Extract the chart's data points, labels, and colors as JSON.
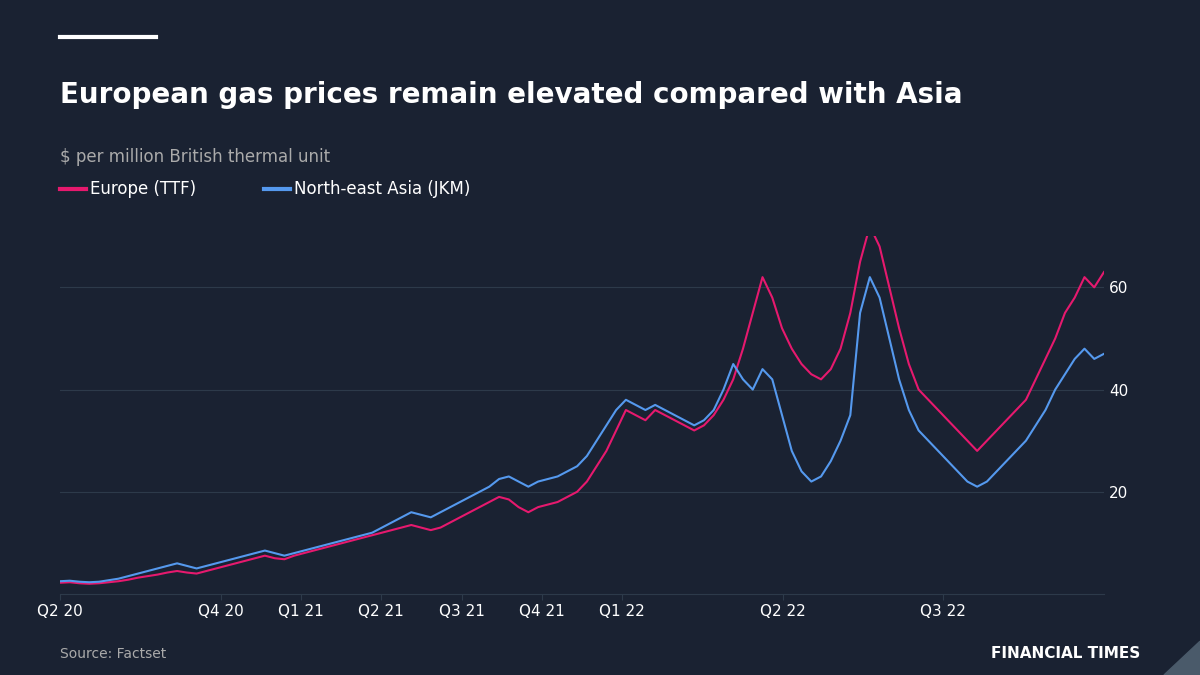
{
  "title": "European gas prices remain elevated compared with Asia",
  "subtitle": "$ per million British thermal unit",
  "legend_europe": "Europe (TTF)",
  "legend_asia": "North-east Asia (JKM)",
  "source": "Source: Factset",
  "footer": "FINANCIAL TIMES",
  "background_color": "#1a2232",
  "text_color": "#ffffff",
  "subtitle_color": "#aaaaaa",
  "grid_color": "#2d3a4a",
  "europe_color": "#e6196e",
  "asia_color": "#5599ee",
  "yticks": [
    20,
    40,
    60
  ],
  "ylim": [
    0,
    70
  ],
  "xtick_labels": [
    "Q2 20",
    "Q4 20",
    "Q1 21",
    "Q2 21",
    "Q3 21",
    "Q4 21",
    "Q1 22",
    "Q2 22",
    "Q3 22"
  ],
  "europe_data": [
    2.2,
    2.3,
    2.1,
    2.0,
    2.1,
    2.3,
    2.5,
    2.8,
    3.2,
    3.5,
    3.8,
    4.2,
    4.5,
    4.2,
    4.0,
    4.5,
    5.0,
    5.5,
    6.0,
    6.5,
    7.0,
    7.5,
    7.0,
    6.8,
    7.5,
    8.0,
    8.5,
    9.0,
    9.5,
    10.0,
    10.5,
    11.0,
    11.5,
    12.0,
    12.5,
    13.0,
    13.5,
    13.0,
    12.5,
    13.0,
    14.0,
    15.0,
    16.0,
    17.0,
    18.0,
    19.0,
    18.5,
    17.0,
    16.0,
    17.0,
    17.5,
    18.0,
    19.0,
    20.0,
    22.0,
    25.0,
    28.0,
    32.0,
    36.0,
    35.0,
    34.0,
    36.0,
    35.0,
    34.0,
    33.0,
    32.0,
    33.0,
    35.0,
    38.0,
    42.0,
    48.0,
    55.0,
    62.0,
    58.0,
    52.0,
    48.0,
    45.0,
    43.0,
    42.0,
    44.0,
    48.0,
    55.0,
    65.0,
    72.0,
    68.0,
    60.0,
    52.0,
    45.0,
    40.0,
    38.0,
    36.0,
    34.0,
    32.0,
    30.0,
    28.0,
    30.0,
    32.0,
    34.0,
    36.0,
    38.0,
    42.0,
    46.0,
    50.0,
    55.0,
    58.0,
    62.0,
    60.0,
    63.0
  ],
  "asia_data": [
    2.5,
    2.6,
    2.4,
    2.3,
    2.4,
    2.7,
    3.0,
    3.5,
    4.0,
    4.5,
    5.0,
    5.5,
    6.0,
    5.5,
    5.0,
    5.5,
    6.0,
    6.5,
    7.0,
    7.5,
    8.0,
    8.5,
    8.0,
    7.5,
    8.0,
    8.5,
    9.0,
    9.5,
    10.0,
    10.5,
    11.0,
    11.5,
    12.0,
    13.0,
    14.0,
    15.0,
    16.0,
    15.5,
    15.0,
    16.0,
    17.0,
    18.0,
    19.0,
    20.0,
    21.0,
    22.5,
    23.0,
    22.0,
    21.0,
    22.0,
    22.5,
    23.0,
    24.0,
    25.0,
    27.0,
    30.0,
    33.0,
    36.0,
    38.0,
    37.0,
    36.0,
    37.0,
    36.0,
    35.0,
    34.0,
    33.0,
    34.0,
    36.0,
    40.0,
    45.0,
    42.0,
    40.0,
    44.0,
    42.0,
    35.0,
    28.0,
    24.0,
    22.0,
    23.0,
    26.0,
    30.0,
    35.0,
    55.0,
    62.0,
    58.0,
    50.0,
    42.0,
    36.0,
    32.0,
    30.0,
    28.0,
    26.0,
    24.0,
    22.0,
    21.0,
    22.0,
    24.0,
    26.0,
    28.0,
    30.0,
    33.0,
    36.0,
    40.0,
    43.0,
    46.0,
    48.0,
    46.0,
    47.0
  ]
}
